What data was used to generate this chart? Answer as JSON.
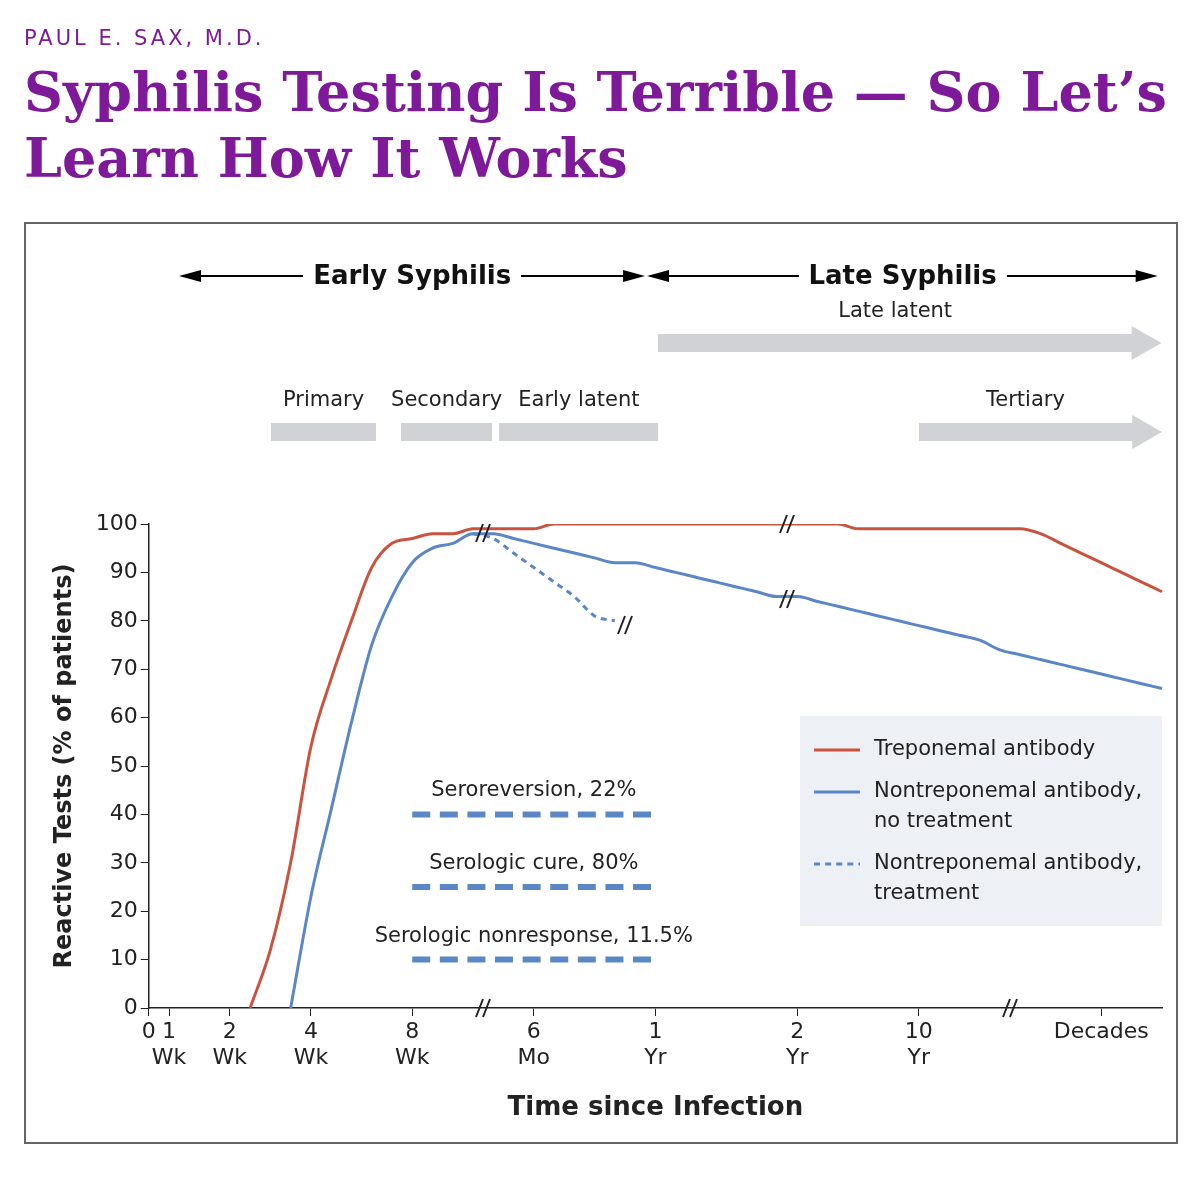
{
  "chart_data": {
    "type": "line",
    "subtitle": "PAUL E. SAX, M.D.",
    "title": "Syphilis Testing Is Terrible — So Let’s Learn How It Works",
    "xlabel": "Time since Infection",
    "ylabel": "Reactive Tests (% of patients)",
    "categories": [
      "0",
      "1 Wk",
      null,
      null,
      "2 Wk",
      null,
      null,
      null,
      "4 Wk",
      null,
      null,
      null,
      null,
      "8 Wk",
      null,
      null,
      null,
      null,
      null,
      "6 Mo",
      null,
      null,
      null,
      null,
      null,
      "1 Yr",
      null,
      null,
      null,
      null,
      null,
      null,
      "2 Yr",
      null,
      null,
      null,
      null,
      null,
      "10 Yr",
      null,
      null,
      null,
      null,
      null,
      null,
      null,
      null,
      "Decades",
      null,
      null,
      null
    ],
    "ylim": [
      0,
      100
    ],
    "yticks": [
      0,
      10,
      20,
      30,
      40,
      50,
      60,
      70,
      80,
      90,
      100
    ],
    "marker": "none",
    "legend": "bottom right",
    "series": [
      {
        "name": "Treponemal antibody",
        "color": "#c9533e",
        "line_style": "solid",
        "values": [
          null,
          null,
          null,
          null,
          null,
          0,
          12,
          30,
          54,
          68,
          80,
          91,
          96,
          97,
          98,
          98,
          99,
          99,
          99,
          99,
          100,
          100,
          100,
          100,
          100,
          100,
          100,
          100,
          100,
          100,
          100,
          100,
          100,
          100,
          100,
          99,
          99,
          99,
          99,
          99,
          99,
          99,
          99,
          99,
          98,
          96,
          94,
          92,
          90,
          88,
          86
        ]
      },
      {
        "name": "Nontreponemal antibody, no treatment",
        "color": "#5b87c6",
        "line_style": "solid",
        "values": [
          null,
          null,
          null,
          null,
          null,
          null,
          null,
          0,
          23,
          41,
          59,
          75,
          85,
          92,
          95,
          96,
          98,
          98,
          97,
          96,
          95,
          94,
          93,
          92,
          92,
          91,
          90,
          89,
          88,
          87,
          86,
          85,
          85,
          84,
          83,
          82,
          81,
          80,
          79,
          78,
          77,
          76,
          74,
          73,
          72,
          71,
          70,
          69,
          68,
          67,
          66
        ]
      },
      {
        "name": "Nontreponemal antibody, treatment",
        "color": "#5b87c6",
        "line_style": "dotted",
        "values": [
          null,
          null,
          null,
          null,
          null,
          null,
          null,
          null,
          null,
          null,
          null,
          null,
          null,
          null,
          null,
          null,
          98,
          97,
          94,
          91,
          88,
          85,
          81,
          80,
          null,
          null,
          null,
          null,
          null,
          null,
          null,
          null,
          null,
          null,
          null,
          null,
          null,
          null,
          null,
          null,
          null,
          null,
          null,
          null,
          null,
          null,
          null,
          null,
          null,
          null,
          null
        ]
      },
      {
        "color": "#5b87c6",
        "line_style": "dashed",
        "values": [
          null,
          null,
          null,
          null,
          null,
          null,
          null,
          null,
          null,
          null,
          null,
          null,
          null,
          40,
          40,
          40,
          40,
          40,
          40,
          40,
          40,
          40,
          40,
          40,
          40,
          40,
          null,
          null,
          null,
          null,
          null,
          null,
          null,
          null,
          null,
          null,
          null,
          null,
          null,
          null,
          null,
          null,
          null,
          null,
          null,
          null,
          null,
          null,
          null,
          null,
          null
        ]
      },
      {
        "color": "#5b87c6",
        "line_style": "dashed",
        "values": [
          null,
          null,
          null,
          null,
          null,
          null,
          null,
          null,
          null,
          null,
          null,
          null,
          null,
          25,
          25,
          25,
          25,
          25,
          25,
          25,
          25,
          25,
          25,
          25,
          25,
          25,
          null,
          null,
          null,
          null,
          null,
          null,
          null,
          null,
          null,
          null,
          null,
          null,
          null,
          null,
          null,
          null,
          null,
          null,
          null,
          null,
          null,
          null,
          null,
          null,
          null
        ]
      },
      {
        "color": "#5b87c6",
        "line_style": "dashed",
        "values": [
          null,
          null,
          null,
          null,
          null,
          null,
          null,
          null,
          null,
          null,
          null,
          null,
          null,
          10,
          10,
          10,
          10,
          10,
          10,
          10,
          10,
          10,
          10,
          10,
          10,
          10,
          null,
          null,
          null,
          null,
          null,
          null,
          null,
          null,
          null,
          null,
          null,
          null,
          null,
          null,
          null,
          null,
          null,
          null,
          null,
          null,
          null,
          null,
          null,
          null,
          null
        ]
      }
    ],
    "annotations": [
      "Early Syphilis",
      "Late Syphilis",
      "Primary",
      "Secondary",
      "Early latent",
      "Tertiary",
      "Late latent",
      "Seroreversion, 22%",
      "Serologic cure, 80%",
      "Serologic nonresponse, 11.5%"
    ]
  }
}
